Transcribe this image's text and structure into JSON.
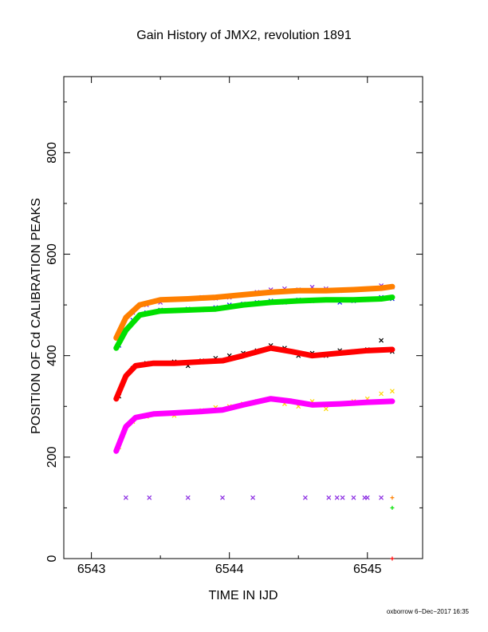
{
  "chart_data": {
    "type": "scatter",
    "title": "Gain History of JMX2, revolution 1891",
    "xlabel": "TIME IN IJD",
    "ylabel": "POSITION OF Cd CALIBRATION PEAKS",
    "xlim": [
      6542.8,
      6545.4
    ],
    "ylim": [
      0,
      950
    ],
    "xticks": [
      6543,
      6544,
      6545
    ],
    "yticks": [
      0,
      200,
      400,
      600,
      800
    ],
    "grid": false,
    "legend": "none",
    "series": [
      {
        "color": "#8a2be2",
        "marker": "x",
        "x": [
          6543.2,
          6543.3,
          6543.4,
          6543.5,
          6543.6,
          6543.7,
          6543.8,
          6543.9,
          6544.0,
          6544.1,
          6544.2,
          6544.3,
          6544.4,
          6544.5,
          6544.6,
          6544.7,
          6544.8,
          6544.9,
          6545.0,
          6545.1,
          6545.18
        ],
        "y": [
          430,
          485,
          500,
          505,
          510,
          512,
          515,
          513,
          515,
          520,
          525,
          530,
          532,
          530,
          535,
          532,
          528,
          530,
          532,
          538,
          535
        ]
      },
      {
        "color": "#1010ff",
        "marker": "x",
        "x": [
          6543.2,
          6543.3,
          6543.4,
          6543.5,
          6543.6,
          6543.7,
          6543.8,
          6543.9,
          6544.0,
          6544.1,
          6544.2,
          6544.3,
          6544.4,
          6544.5,
          6544.6,
          6544.7,
          6544.8,
          6544.9,
          6545.0,
          6545.1,
          6545.18
        ],
        "y": [
          420,
          470,
          485,
          490,
          488,
          492,
          490,
          495,
          500,
          502,
          505,
          508,
          505,
          510,
          508,
          510,
          505,
          508,
          510,
          515,
          512
        ]
      },
      {
        "color": "#ff7f00",
        "marker": "line",
        "x": [
          6543.18,
          6543.25,
          6543.35,
          6543.5,
          6543.7,
          6543.9,
          6544.1,
          6544.3,
          6544.5,
          6544.7,
          6544.9,
          6545.1,
          6545.18
        ],
        "y": [
          435,
          475,
          500,
          510,
          512,
          515,
          520,
          525,
          528,
          528,
          530,
          533,
          536
        ]
      },
      {
        "color": "#00e000",
        "marker": "line",
        "x": [
          6543.18,
          6543.25,
          6543.35,
          6543.5,
          6543.7,
          6543.9,
          6544.1,
          6544.3,
          6544.5,
          6544.7,
          6544.9,
          6545.1,
          6545.18
        ],
        "y": [
          415,
          450,
          480,
          488,
          490,
          492,
          500,
          505,
          508,
          510,
          510,
          512,
          515
        ]
      },
      {
        "color": "#000000",
        "marker": "x",
        "x": [
          6543.2,
          6543.3,
          6543.4,
          6543.5,
          6543.6,
          6543.7,
          6543.8,
          6543.9,
          6544.0,
          6544.1,
          6544.2,
          6544.3,
          6544.4,
          6544.5,
          6544.6,
          6544.7,
          6544.8,
          6544.9,
          6545.0,
          6545.1,
          6545.18
        ],
        "y": [
          320,
          375,
          385,
          385,
          388,
          380,
          390,
          395,
          400,
          405,
          410,
          420,
          415,
          400,
          405,
          400,
          410,
          408,
          412,
          430,
          408
        ]
      },
      {
        "color": "#ff0000",
        "marker": "line",
        "x": [
          6543.18,
          6543.25,
          6543.32,
          6543.45,
          6543.6,
          6543.8,
          6543.95,
          6544.1,
          6544.3,
          6544.45,
          6544.6,
          6544.8,
          6545.0,
          6545.18
        ],
        "y": [
          315,
          360,
          380,
          385,
          385,
          388,
          390,
          400,
          415,
          408,
          400,
          405,
          410,
          412
        ]
      },
      {
        "color": "#ffd700",
        "marker": "x",
        "x": [
          6543.2,
          6543.3,
          6543.4,
          6543.5,
          6543.6,
          6543.7,
          6543.8,
          6543.9,
          6544.0,
          6544.1,
          6544.2,
          6544.3,
          6544.4,
          6544.5,
          6544.6,
          6544.7,
          6544.8,
          6544.9,
          6545.0,
          6545.1,
          6545.18
        ],
        "y": [
          220,
          270,
          280,
          285,
          282,
          288,
          292,
          298,
          300,
          305,
          310,
          315,
          305,
          300,
          310,
          295,
          305,
          310,
          315,
          325,
          330
        ]
      },
      {
        "color": "#ff00ff",
        "marker": "line",
        "x": [
          6543.18,
          6543.25,
          6543.32,
          6543.45,
          6543.6,
          6543.8,
          6543.95,
          6544.1,
          6544.3,
          6544.45,
          6544.6,
          6544.8,
          6545.0,
          6545.18
        ],
        "y": [
          212,
          260,
          278,
          285,
          287,
          290,
          293,
          303,
          315,
          310,
          303,
          305,
          308,
          310
        ]
      },
      {
        "color": "#8a2be2",
        "marker": "x",
        "x": [
          6543.25,
          6543.42,
          6543.7,
          6543.95,
          6544.17,
          6544.55,
          6544.72,
          6544.78,
          6544.82,
          6544.9,
          6544.98,
          6545.0,
          6545.1
        ],
        "y": [
          120,
          120,
          120,
          120,
          120,
          120,
          120,
          120,
          120,
          120,
          120,
          120,
          120
        ]
      },
      {
        "color": "#ff7f00",
        "marker": "+",
        "x": [
          6545.18
        ],
        "y": [
          120
        ]
      },
      {
        "color": "#00e000",
        "marker": "+",
        "x": [
          6545.18
        ],
        "y": [
          100
        ]
      },
      {
        "color": "#ff0000",
        "marker": "+",
        "x": [
          6545.18
        ],
        "y": [
          0
        ]
      }
    ]
  },
  "footer": "oxborrow 6−Dec−2017 16:35"
}
